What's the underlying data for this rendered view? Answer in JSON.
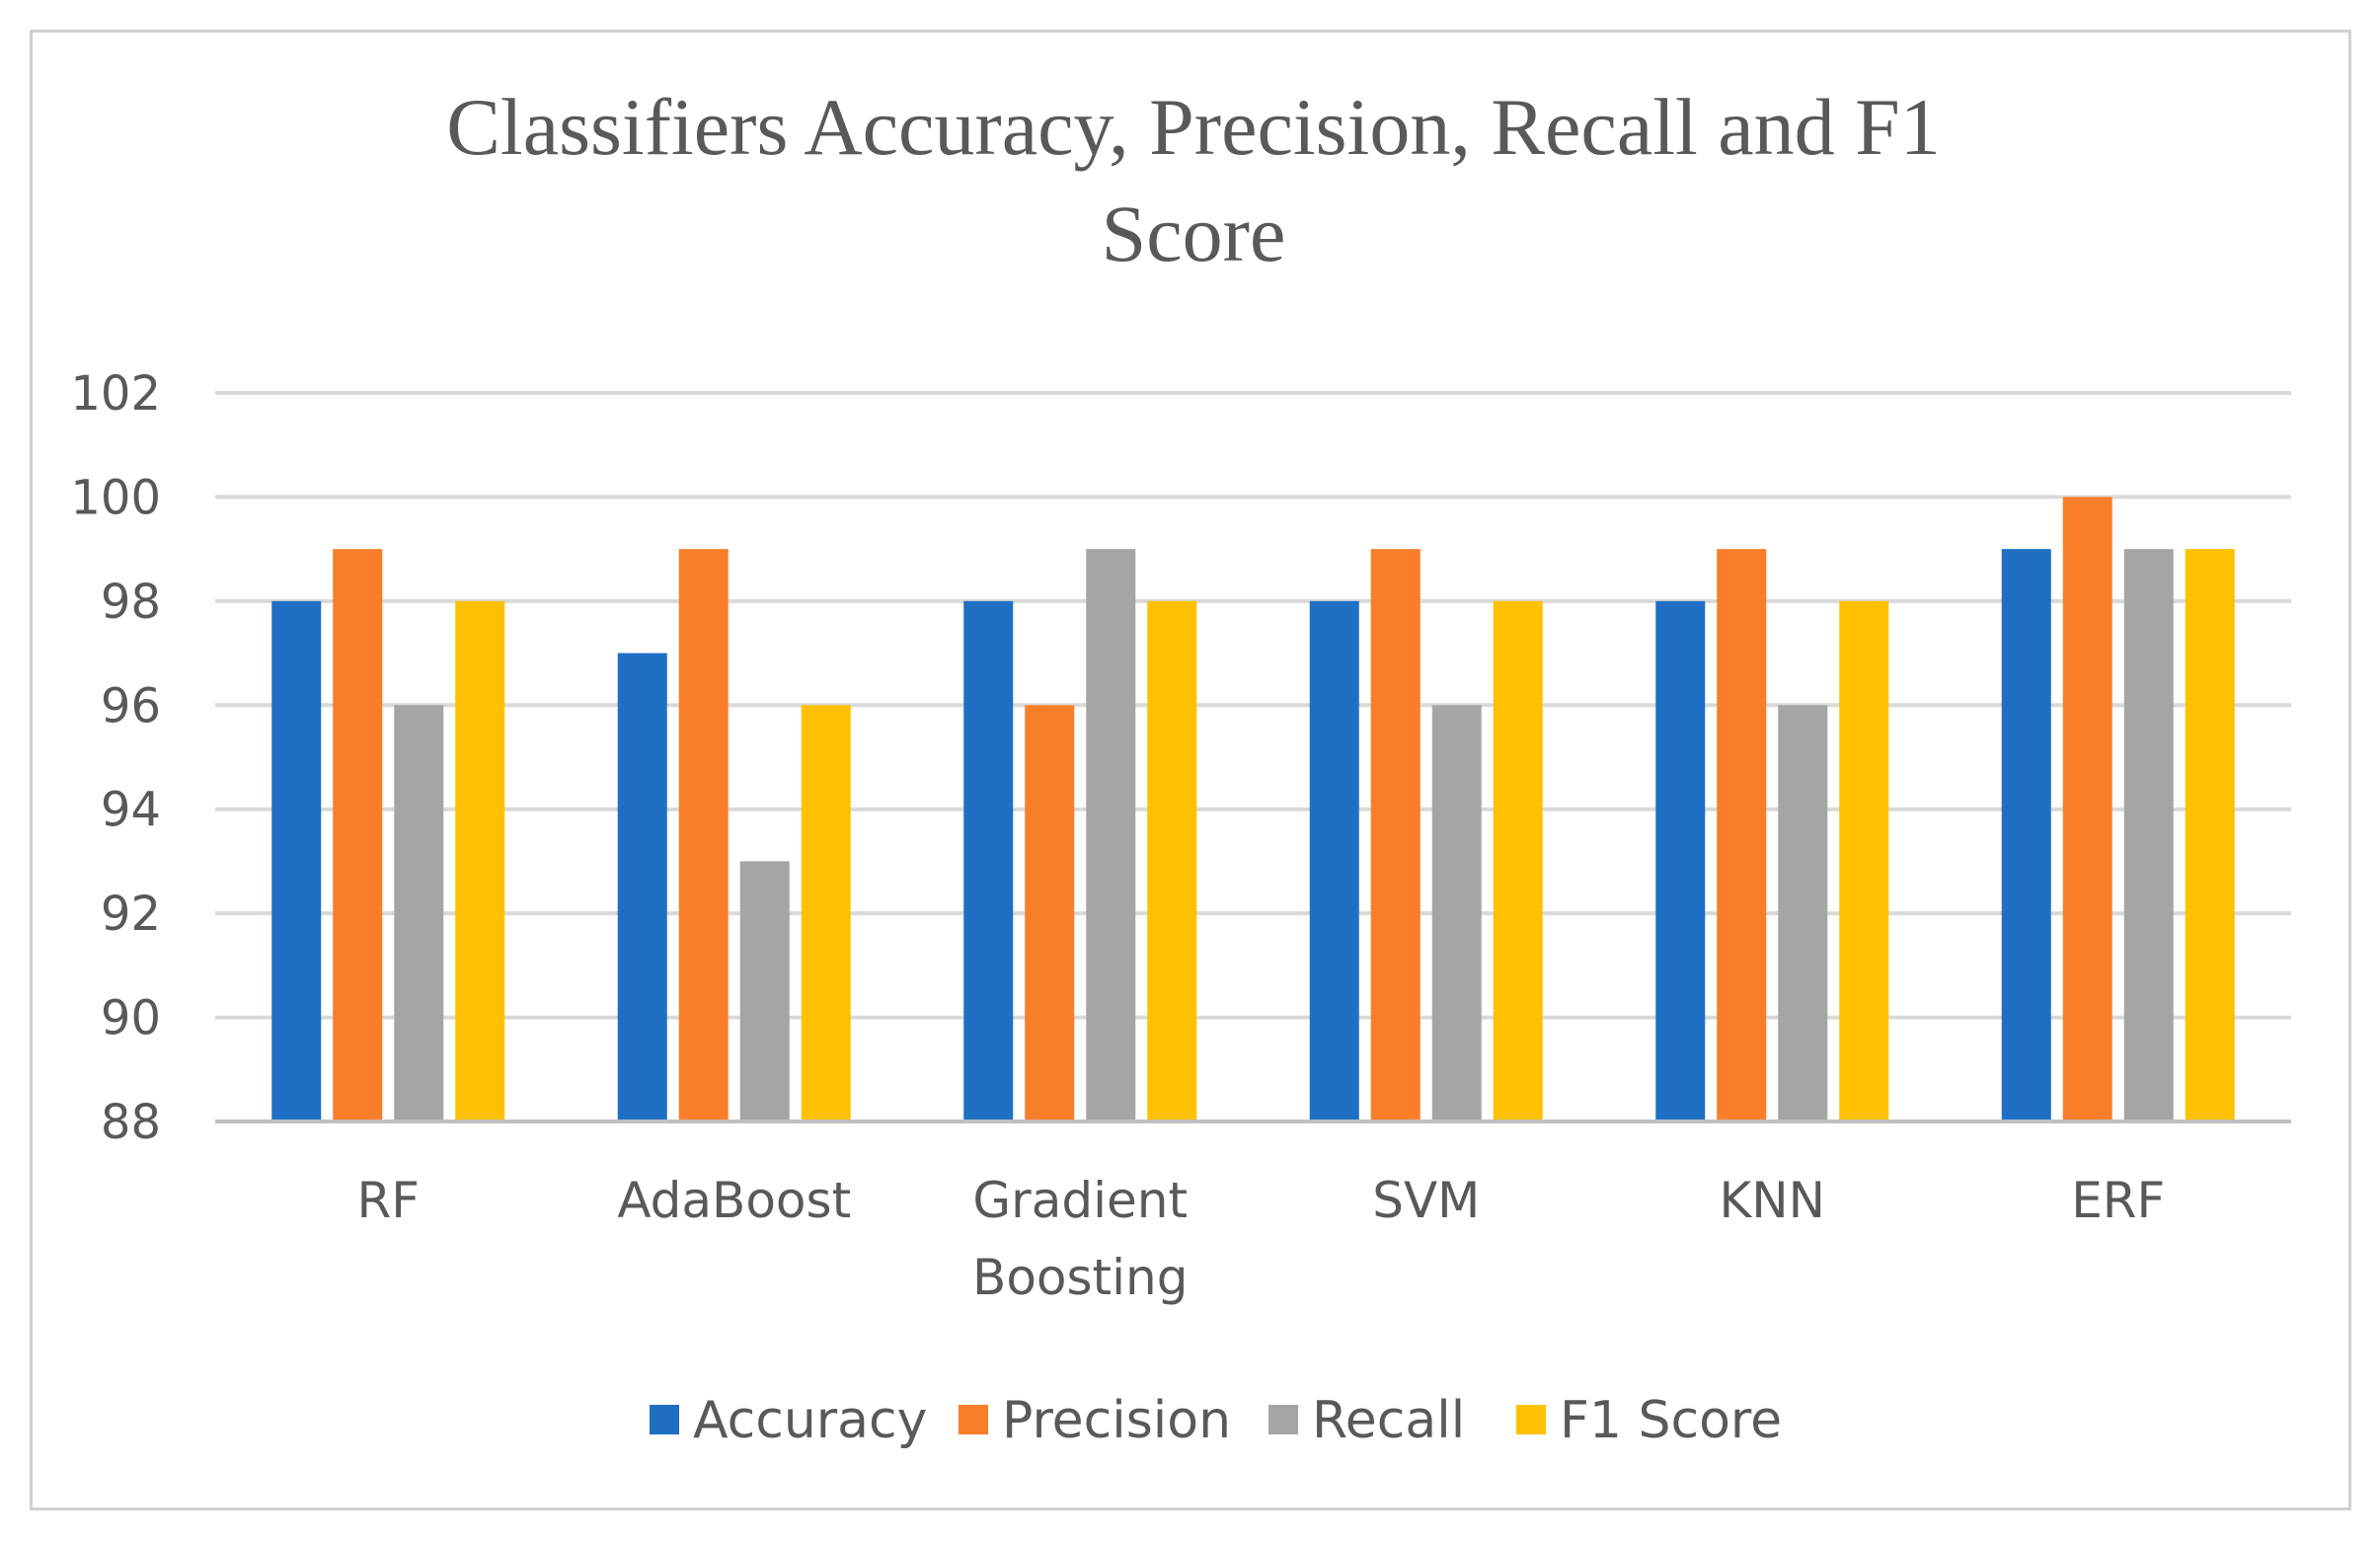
{
  "chart_data": {
    "type": "bar",
    "title_lines": [
      "Classifiers Accuracy, Precision, Recall and F1",
      "Score"
    ],
    "categories": [
      [
        "RF"
      ],
      [
        "AdaBoost"
      ],
      [
        "Gradient",
        "Boosting"
      ],
      [
        "SVM"
      ],
      [
        "KNN"
      ],
      [
        "ERF"
      ]
    ],
    "series": [
      {
        "name": "Accuracy",
        "color": "#1f6fc5",
        "values": [
          98,
          97,
          98,
          98,
          98,
          99
        ]
      },
      {
        "name": "Precision",
        "color": "#fa7d2a",
        "values": [
          99,
          99,
          96,
          99,
          99,
          100
        ]
      },
      {
        "name": "Recall",
        "color": "#a5a5a5",
        "values": [
          96,
          93,
          99,
          96,
          96,
          99
        ]
      },
      {
        "name": "F1 Score",
        "color": "#ffc000",
        "values": [
          98,
          96,
          98,
          98,
          98,
          99
        ]
      }
    ],
    "ylim": [
      88,
      102
    ],
    "yticks": [
      88,
      90,
      92,
      94,
      96,
      98,
      100,
      102
    ],
    "grid": true,
    "legend_position": "bottom"
  }
}
